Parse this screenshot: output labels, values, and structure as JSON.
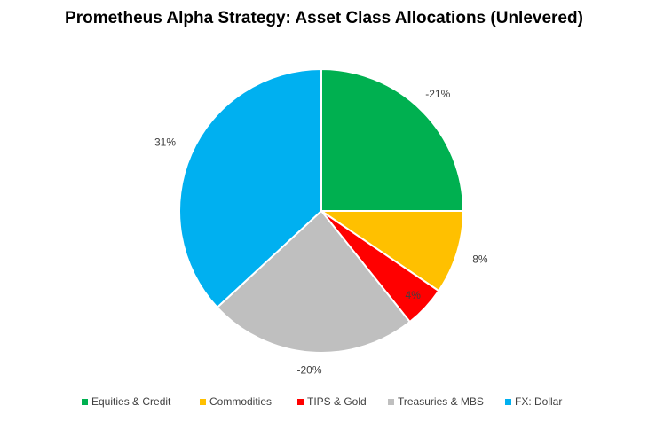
{
  "chart_data": {
    "type": "pie",
    "title": "Prometheus Alpha Strategy: Asset Class Allocations (Unlevered)",
    "categories": [
      "Equities & Credit",
      "Commodities",
      "TIPS & Gold",
      "Treasuries & MBS",
      "FX: Dollar"
    ],
    "values": [
      -21,
      8,
      4,
      -20,
      31
    ],
    "value_labels": [
      "-21%",
      "8%",
      "4%",
      "-20%",
      "31%"
    ],
    "colors": [
      "#00b050",
      "#ffc000",
      "#ff0000",
      "#bfbfbf",
      "#00b0f0"
    ],
    "legend": "bottom"
  }
}
